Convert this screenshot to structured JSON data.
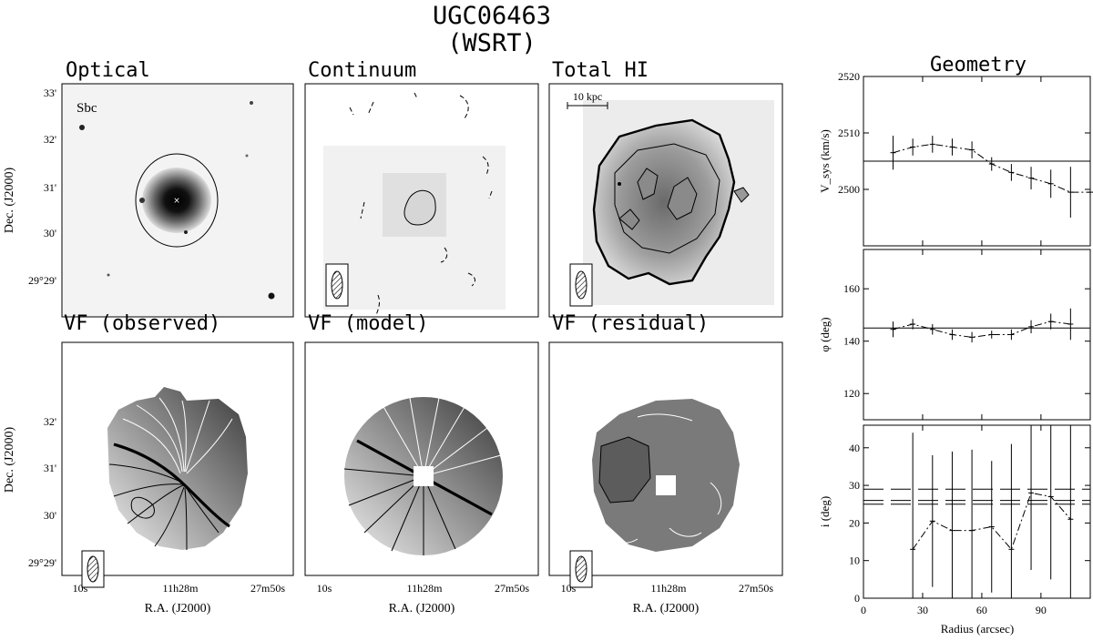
{
  "header": {
    "title": "UGC06463",
    "subtitle": "(WSRT)"
  },
  "panels": [
    {
      "id": "optical",
      "title": "Optical",
      "label": "Sbc"
    },
    {
      "id": "continuum",
      "title": "Continuum"
    },
    {
      "id": "totalhi",
      "title": "Total HI",
      "scalebar": "10 kpc"
    },
    {
      "id": "vfobs",
      "title": "VF (observed)"
    },
    {
      "id": "vfmodel",
      "title": "VF (model)"
    },
    {
      "id": "vfresid",
      "title": "VF (residual)"
    }
  ],
  "axes": {
    "dec_label": "Dec. (J2000)",
    "dec_ticks": [
      "33'",
      "32'",
      "31'",
      "30'",
      "29°29'"
    ],
    "dec_ticks_lower": [
      "32'",
      "31'",
      "30'",
      "29°29'"
    ],
    "ra_label": "R.A. (J2000)",
    "ra_ticks": [
      "10s",
      "11h28m",
      "27m50s"
    ]
  },
  "geometry": {
    "title": "Geometry",
    "xlabel": "Radius (arcsec)",
    "xticks": [
      0,
      30,
      60,
      90
    ],
    "xlim": [
      0,
      115
    ]
  },
  "chart_data": [
    {
      "type": "scatter",
      "title": "Geometry",
      "ylabel": "V_sys (km/s)",
      "ylim": [
        2490,
        2520
      ],
      "yticks": [
        2500,
        2510,
        2520
      ],
      "reference_lines": [
        2505
      ],
      "series": [
        {
          "x": [
            15,
            25,
            35,
            45,
            55,
            65,
            75,
            85,
            95,
            105,
            115
          ],
          "y": [
            2506.5,
            2507.5,
            2508,
            2507.5,
            2507,
            2504.5,
            2503,
            2502,
            2501,
            2499.5,
            2499.5
          ],
          "err": [
            3,
            1.5,
            1.5,
            1.5,
            1.5,
            1.2,
            1.5,
            2,
            2.5,
            4.5,
            5
          ]
        }
      ]
    },
    {
      "type": "scatter",
      "ylabel": "φ (deg)",
      "ylim": [
        110,
        175
      ],
      "yticks": [
        120,
        140,
        160
      ],
      "reference_lines": [
        145
      ],
      "series": [
        {
          "x": [
            15,
            25,
            35,
            45,
            55,
            65,
            75,
            85,
            95,
            105
          ],
          "y": [
            144.5,
            146.5,
            144.5,
            142.5,
            141.5,
            142.5,
            142.5,
            145.5,
            147.5,
            146.5
          ],
          "err": [
            3,
            2,
            2,
            2,
            2,
            1.5,
            2,
            2.5,
            3,
            6
          ]
        }
      ]
    },
    {
      "type": "scatter",
      "xlabel": "Radius (arcsec)",
      "ylabel": "i (deg)",
      "ylim": [
        0,
        46
      ],
      "yticks": [
        0,
        10,
        20,
        30,
        40
      ],
      "reference_lines": [
        25,
        29,
        26
      ],
      "series": [
        {
          "x": [
            25,
            35,
            45,
            55,
            65,
            75,
            85,
            95,
            105
          ],
          "y": [
            13,
            20.5,
            18,
            18,
            19,
            13,
            28,
            27,
            21
          ],
          "err": [
            31,
            17.5,
            21,
            21.5,
            17.5,
            28,
            20.5,
            22,
            26
          ]
        }
      ]
    }
  ]
}
